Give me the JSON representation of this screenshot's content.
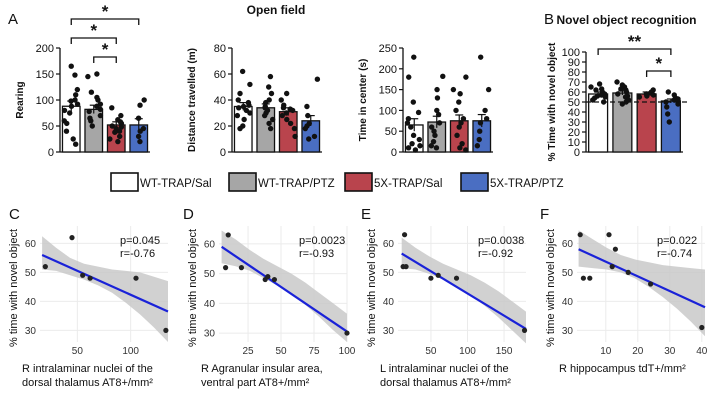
{
  "colors": {
    "wt_sal": "#ffffff",
    "wt_ptz": "#a6a6a6",
    "fx_sal": "#b9444d",
    "fx_ptz": "#4a6ec2",
    "line": "#1a22d8",
    "band": "#c9c9c9",
    "point": "#222222"
  },
  "legend": [
    {
      "label": "WT-TRAP/Sal",
      "color_key": "wt_sal"
    },
    {
      "label": "WT-TRAP/PTZ",
      "color_key": "wt_ptz"
    },
    {
      "label": "5X-TRAP/Sal",
      "color_key": "fx_sal"
    },
    {
      "label": "5X-TRAP/PTZ",
      "color_key": "fx_ptz"
    }
  ],
  "chart_data": [
    {
      "id": "A1",
      "panel": "A",
      "title": "Open field",
      "type": "bar",
      "ylabel": "Rearing",
      "ylim": [
        0,
        200
      ],
      "yticks": [
        0,
        50,
        100,
        150,
        200
      ],
      "categories": [
        "WT-TRAP/Sal",
        "WT-TRAP/PTZ",
        "5X-TRAP/Sal",
        "5X-TRAP/PTZ"
      ],
      "values": [
        88,
        82,
        52,
        52
      ],
      "errors": [
        10,
        8,
        6,
        12
      ],
      "points": [
        [
          165,
          148,
          120,
          110,
          100,
          98,
          92,
          88,
          80,
          75,
          60,
          55,
          40,
          25,
          15
        ],
        [
          150,
          145,
          115,
          105,
          100,
          92,
          88,
          82,
          78,
          70,
          65,
          60,
          50
        ],
        [
          85,
          70,
          62,
          58,
          55,
          50,
          48,
          45,
          40,
          38,
          30,
          25,
          20
        ],
        [
          100,
          90,
          65,
          45,
          40,
          30,
          20
        ]
      ],
      "significance": [
        {
          "from": 0,
          "to": 3,
          "label": "*"
        },
        {
          "from": 0,
          "to": 2,
          "label": "*"
        },
        {
          "from": 1,
          "to": 2,
          "label": "*"
        }
      ]
    },
    {
      "id": "A2",
      "panel": "",
      "title": "",
      "type": "bar",
      "ylabel": "Distance travelled (m)",
      "ylim": [
        0,
        80
      ],
      "yticks": [
        0,
        20,
        40,
        60,
        80
      ],
      "categories": [
        "WT-TRAP/Sal",
        "WT-TRAP/PTZ",
        "5X-TRAP/Sal",
        "5X-TRAP/PTZ"
      ],
      "values": [
        35,
        34,
        31,
        24
      ],
      "errors": [
        3,
        3,
        3,
        4
      ],
      "points": [
        [
          62,
          52,
          45,
          40,
          38,
          36,
          35,
          34,
          32,
          30,
          28,
          25,
          20,
          18
        ],
        [
          58,
          50,
          45,
          40,
          38,
          35,
          34,
          32,
          30,
          28,
          25,
          22,
          18
        ],
        [
          45,
          40,
          36,
          34,
          33,
          32,
          30,
          28,
          25,
          22,
          18,
          12
        ],
        [
          56,
          35,
          28,
          22,
          20,
          18,
          12,
          10
        ]
      ],
      "significance": []
    },
    {
      "id": "A3",
      "panel": "",
      "title": "",
      "type": "bar",
      "ylabel": "Time in center (s)",
      "ylim": [
        0,
        250
      ],
      "yticks": [
        0,
        50,
        100,
        150,
        200,
        250
      ],
      "categories": [
        "WT-TRAP/Sal",
        "WT-TRAP/PTZ",
        "5X-TRAP/Sal",
        "5X-TRAP/PTZ"
      ],
      "values": [
        65,
        72,
        75,
        75
      ],
      "errors": [
        15,
        14,
        14,
        15
      ],
      "points": [
        [
          228,
          180,
          120,
          95,
          80,
          70,
          60,
          40,
          30,
          20,
          15,
          10,
          5
        ],
        [
          182,
          150,
          130,
          100,
          90,
          70,
          60,
          50,
          40,
          25,
          15,
          10
        ],
        [
          180,
          150,
          140,
          120,
          100,
          80,
          70,
          60,
          40,
          20,
          10,
          5
        ],
        [
          228,
          150,
          100,
          80,
          70,
          50,
          30,
          15
        ]
      ],
      "significance": []
    },
    {
      "id": "B",
      "panel": "B",
      "title": "Novel object recognition",
      "type": "bar",
      "ylabel": "% Time with novel object",
      "ylim": [
        0,
        100
      ],
      "yticks": [
        0,
        10,
        20,
        30,
        40,
        50,
        60,
        70,
        80,
        90,
        100
      ],
      "categories": [
        "WT-TRAP/Sal",
        "WT-TRAP/PTZ",
        "5X-TRAP/Sal",
        "5X-TRAP/PTZ"
      ],
      "values": [
        58,
        59,
        58,
        51
      ],
      "errors": [
        2,
        2,
        2,
        2
      ],
      "reference_line": 50,
      "points": [
        [
          68,
          65,
          63,
          62,
          60,
          58,
          57,
          56,
          55,
          54,
          52,
          50
        ],
        [
          70,
          67,
          65,
          63,
          62,
          60,
          58,
          56,
          55,
          52,
          50,
          48
        ],
        [
          62,
          60,
          59,
          58,
          57,
          56,
          55
        ],
        [
          60,
          57,
          54,
          53,
          52,
          51,
          50,
          48,
          45,
          38,
          30
        ]
      ],
      "significance": [
        {
          "from": 0,
          "to": 3,
          "label": "**"
        },
        {
          "from": 2,
          "to": 3,
          "label": "*"
        }
      ]
    },
    {
      "id": "C",
      "panel": "C",
      "type": "scatter",
      "xlabel": [
        "R intralaminar nuclei of the",
        "dorsal thalamus AT8+/mm²"
      ],
      "ylabel": "% time with novel object",
      "xlim": [
        15,
        135
      ],
      "ylim": [
        26,
        66
      ],
      "xticks": [
        50,
        100
      ],
      "yticks": [
        30,
        40,
        50,
        60
      ],
      "x": [
        20,
        45,
        55,
        62,
        105,
        133
      ],
      "y": [
        52,
        62,
        49,
        48,
        48,
        30
      ],
      "fit": {
        "x0": 17,
        "y0": 56,
        "x1": 135,
        "y1": 36.5
      },
      "band": {
        "upper": [
          62.5,
          58.5,
          55,
          53,
          52,
          51,
          50.5,
          50,
          48.5,
          47
        ],
        "lower": [
          51,
          50.5,
          49,
          47.5,
          45.5,
          43,
          39.5,
          35.5,
          31,
          26
        ]
      },
      "p": "p=0.045",
      "r": "r=-0.76"
    },
    {
      "id": "D",
      "panel": "D",
      "type": "scatter",
      "xlabel": [
        "R Agranular insular area,",
        "ventral part AT8+/mm²"
      ],
      "ylabel": "% time with novel object",
      "xlim": [
        3,
        100
      ],
      "ylim": [
        27,
        66
      ],
      "xticks": [
        25,
        50,
        75,
        100
      ],
      "yticks": [
        30,
        40,
        50,
        60
      ],
      "x": [
        8,
        10,
        20,
        38,
        40,
        45,
        100
      ],
      "y": [
        52,
        63,
        52,
        48,
        49,
        48,
        30
      ],
      "fit": {
        "x0": 5,
        "y0": 59,
        "x1": 100,
        "y1": 30.5
      },
      "band": {
        "upper": [
          64.5,
          61.5,
          58,
          55,
          52.5,
          50,
          47,
          43.5,
          40,
          36.5
        ],
        "lower": [
          53.5,
          52.5,
          51,
          48.5,
          46,
          43,
          39.5,
          35.5,
          31,
          27
        ]
      },
      "p": "p=0.0023",
      "r": "r=-0.93"
    },
    {
      "id": "E",
      "panel": "E",
      "type": "scatter",
      "xlabel": [
        "L intralaminar nuclei of the",
        "dorsal thalamus AT8+/mm²"
      ],
      "ylabel": "% time with novel object",
      "xlim": [
        5,
        180
      ],
      "ylim": [
        26,
        66
      ],
      "xticks": [
        50,
        100,
        150
      ],
      "yticks": [
        30,
        40,
        50,
        60
      ],
      "x": [
        12,
        14,
        16,
        50,
        60,
        85,
        178
      ],
      "y": [
        52,
        63,
        52,
        48,
        49,
        48,
        30
      ],
      "fit": {
        "x0": 10,
        "y0": 56.5,
        "x1": 180,
        "y1": 30.5
      },
      "band": {
        "upper": [
          62,
          58.5,
          55.5,
          53,
          51,
          49,
          46.5,
          43.5,
          40,
          36.5
        ],
        "lower": [
          51.5,
          51,
          49.5,
          47.5,
          45,
          42,
          38.5,
          34.5,
          30,
          25.5
        ]
      },
      "p": "p=0.0038",
      "r": "r=-0.92"
    },
    {
      "id": "F",
      "panel": "F",
      "type": "scatter",
      "xlabel": [
        "R hippocampus tdT+/mm²"
      ],
      "ylabel": "% time with novel object",
      "xlim": [
        1,
        41
      ],
      "ylim": [
        26,
        66
      ],
      "xticks": [
        10,
        20,
        30,
        40
      ],
      "yticks": [
        30,
        40,
        50,
        60
      ],
      "x": [
        2,
        3,
        5,
        11,
        12,
        13,
        17,
        24,
        40
      ],
      "y": [
        63,
        48,
        48,
        63,
        52,
        58,
        50,
        46,
        31
      ],
      "fit": {
        "x0": 1.5,
        "y0": 58,
        "x1": 41,
        "y1": 38
      },
      "band": {
        "upper": [
          64.5,
          61.5,
          58.5,
          56,
          54.5,
          53.5,
          52.5,
          52,
          51.5,
          51
        ],
        "lower": [
          52,
          51.5,
          51,
          50,
          48,
          45,
          41.5,
          37.5,
          33,
          28
        ]
      },
      "p": "p=0.022",
      "r": "r=-0.74"
    }
  ]
}
